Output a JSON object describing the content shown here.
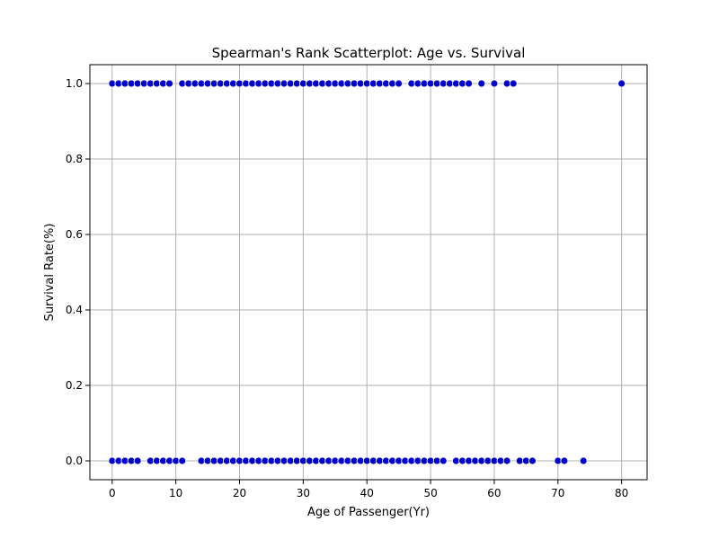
{
  "chart_data": {
    "type": "scatter",
    "title": "Spearman's Rank Scatterplot: Age vs. Survival",
    "xlabel": "Age of Passenger(Yr)",
    "ylabel": "Survival Rate(%)",
    "xlim": [
      -3.5,
      84.0
    ],
    "ylim": [
      -0.05,
      1.05
    ],
    "xticks": [
      "0",
      "10",
      "20",
      "30",
      "40",
      "50",
      "60",
      "70",
      "80"
    ],
    "yticks": [
      "0.0",
      "0.2",
      "0.4",
      "0.6",
      "0.8",
      "1.0"
    ],
    "grid": true,
    "marker_color": "#0000cc",
    "marker_edge_color": "#ffffff",
    "series": [
      {
        "x": [
          0,
          1,
          2,
          3,
          4,
          5,
          6,
          7,
          8,
          9,
          11,
          12,
          13,
          14,
          15,
          16,
          17,
          18,
          19,
          20,
          21,
          22,
          23,
          24,
          25,
          26,
          27,
          28,
          29,
          30,
          31,
          32,
          33,
          34,
          35,
          36,
          37,
          38,
          39,
          40,
          41,
          42,
          43,
          44,
          45,
          47,
          48,
          49,
          50,
          51,
          52,
          53,
          54,
          55,
          56,
          58,
          60,
          62,
          63,
          80
        ],
        "y": [
          1,
          1,
          1,
          1,
          1,
          1,
          1,
          1,
          1,
          1,
          1,
          1,
          1,
          1,
          1,
          1,
          1,
          1,
          1,
          1,
          1,
          1,
          1,
          1,
          1,
          1,
          1,
          1,
          1,
          1,
          1,
          1,
          1,
          1,
          1,
          1,
          1,
          1,
          1,
          1,
          1,
          1,
          1,
          1,
          1,
          1,
          1,
          1,
          1,
          1,
          1,
          1,
          1,
          1,
          1,
          1,
          1,
          1,
          1,
          1
        ]
      },
      {
        "x": [
          0,
          1,
          2,
          3,
          4,
          6,
          7,
          8,
          9,
          10,
          11,
          14,
          15,
          16,
          17,
          18,
          19,
          20,
          21,
          22,
          23,
          24,
          25,
          26,
          27,
          28,
          29,
          30,
          31,
          32,
          33,
          34,
          35,
          36,
          37,
          38,
          39,
          40,
          41,
          42,
          43,
          44,
          45,
          46,
          47,
          48,
          49,
          50,
          51,
          52,
          54,
          55,
          56,
          57,
          58,
          59,
          60,
          61,
          62,
          64,
          65,
          66,
          70,
          71,
          74
        ],
        "y": [
          0,
          0,
          0,
          0,
          0,
          0,
          0,
          0,
          0,
          0,
          0,
          0,
          0,
          0,
          0,
          0,
          0,
          0,
          0,
          0,
          0,
          0,
          0,
          0,
          0,
          0,
          0,
          0,
          0,
          0,
          0,
          0,
          0,
          0,
          0,
          0,
          0,
          0,
          0,
          0,
          0,
          0,
          0,
          0,
          0,
          0,
          0,
          0,
          0,
          0,
          0,
          0,
          0,
          0,
          0,
          0,
          0,
          0,
          0,
          0,
          0,
          0,
          0,
          0,
          0
        ]
      }
    ]
  }
}
